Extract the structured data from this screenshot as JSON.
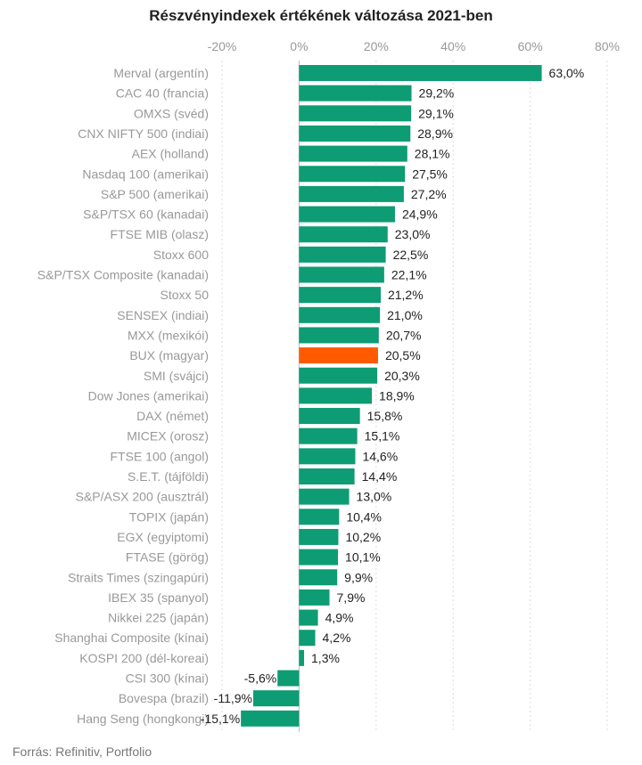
{
  "chart_data": {
    "type": "bar",
    "orientation": "horizontal",
    "title": "Részvényindexek értékének változása 2021-ben",
    "source": "Forrás: Refinitiv, Portfolio",
    "xlim": [
      -20,
      80
    ],
    "xticks": [
      -20,
      0,
      20,
      40,
      60,
      80
    ],
    "xtick_labels": [
      "-20%",
      "0%",
      "20%",
      "40%",
      "60%",
      "80%"
    ],
    "grid": true,
    "colors": {
      "default": "#0d9c73",
      "highlight": "#ff5a00"
    },
    "categories": [
      "Merval (argentín)",
      "CAC 40 (francia)",
      "OMXS (svéd)",
      "CNX NIFTY 500 (indiai)",
      "AEX (holland)",
      "Nasdaq 100 (amerikai)",
      "S&P 500 (amerikai)",
      "S&P/TSX 60 (kanadai)",
      "FTSE MIB (olasz)",
      "Stoxx 600",
      "S&P/TSX Composite (kanadai)",
      "Stoxx 50",
      "SENSEX (indiai)",
      "MXX (mexikói)",
      "BUX (magyar)",
      "SMI (svájci)",
      "Dow Jones (amerikai)",
      "DAX (német)",
      "MICEX (orosz)",
      "FTSE 100 (angol)",
      "S.E.T. (tájföldi)",
      "S&P/ASX 200 (ausztrál)",
      "TOPIX (japán)",
      "EGX (egyiptomi)",
      "FTASE (görög)",
      "Straits Times (szingapúri)",
      "IBEX 35 (spanyol)",
      "Nikkei 225 (japán)",
      "Shanghai Composite (kínai)",
      "KOSPI 200 (dél-koreai)",
      "CSI 300 (kínai)",
      "Bovespa (brazil)",
      "Hang Seng (hongkongi)"
    ],
    "values": [
      63.0,
      29.2,
      29.1,
      28.9,
      28.1,
      27.5,
      27.2,
      24.9,
      23.0,
      22.5,
      22.1,
      21.2,
      21.0,
      20.7,
      20.5,
      20.3,
      18.9,
      15.8,
      15.1,
      14.6,
      14.4,
      13.0,
      10.4,
      10.2,
      10.1,
      9.9,
      7.9,
      4.9,
      4.2,
      1.3,
      -5.6,
      -11.9,
      -15.1
    ],
    "value_labels": [
      "63,0%",
      "29,2%",
      "29,1%",
      "28,9%",
      "28,1%",
      "27,5%",
      "27,2%",
      "24,9%",
      "23,0%",
      "22,5%",
      "22,1%",
      "21,2%",
      "21,0%",
      "20,7%",
      "20,5%",
      "20,3%",
      "18,9%",
      "15,8%",
      "15,1%",
      "14,6%",
      "14,4%",
      "13,0%",
      "10,4%",
      "10,2%",
      "10,1%",
      "9,9%",
      "7,9%",
      "4,9%",
      "4,2%",
      "1,3%",
      "-5,6%",
      "-11,9%",
      "-15,1%"
    ],
    "highlight_category": "BUX (magyar)"
  }
}
